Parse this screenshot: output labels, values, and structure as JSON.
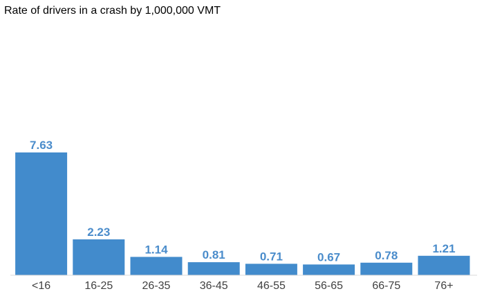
{
  "chart_data": {
    "type": "bar",
    "title": "Rate of drivers in a crash by 1,000,000 VMT",
    "xlabel": "",
    "ylabel": "",
    "categories": [
      "<16",
      "16-25",
      "26-35",
      "36-45",
      "46-55",
      "56-65",
      "66-75",
      "76+"
    ],
    "values": [
      7.63,
      2.23,
      1.14,
      0.81,
      0.71,
      0.67,
      0.78,
      1.21
    ],
    "data_labels": [
      "7.63",
      "2.23",
      "1.14",
      "0.81",
      "0.71",
      "0.67",
      "0.78",
      "1.21"
    ],
    "ylim": [
      0,
      7.63
    ],
    "grid": false,
    "legend": "none",
    "colors": {
      "bar": "#428bcc",
      "value_label": "#4a8ccb",
      "tick_label": "#404040",
      "axis": "#d9d9d9"
    }
  }
}
